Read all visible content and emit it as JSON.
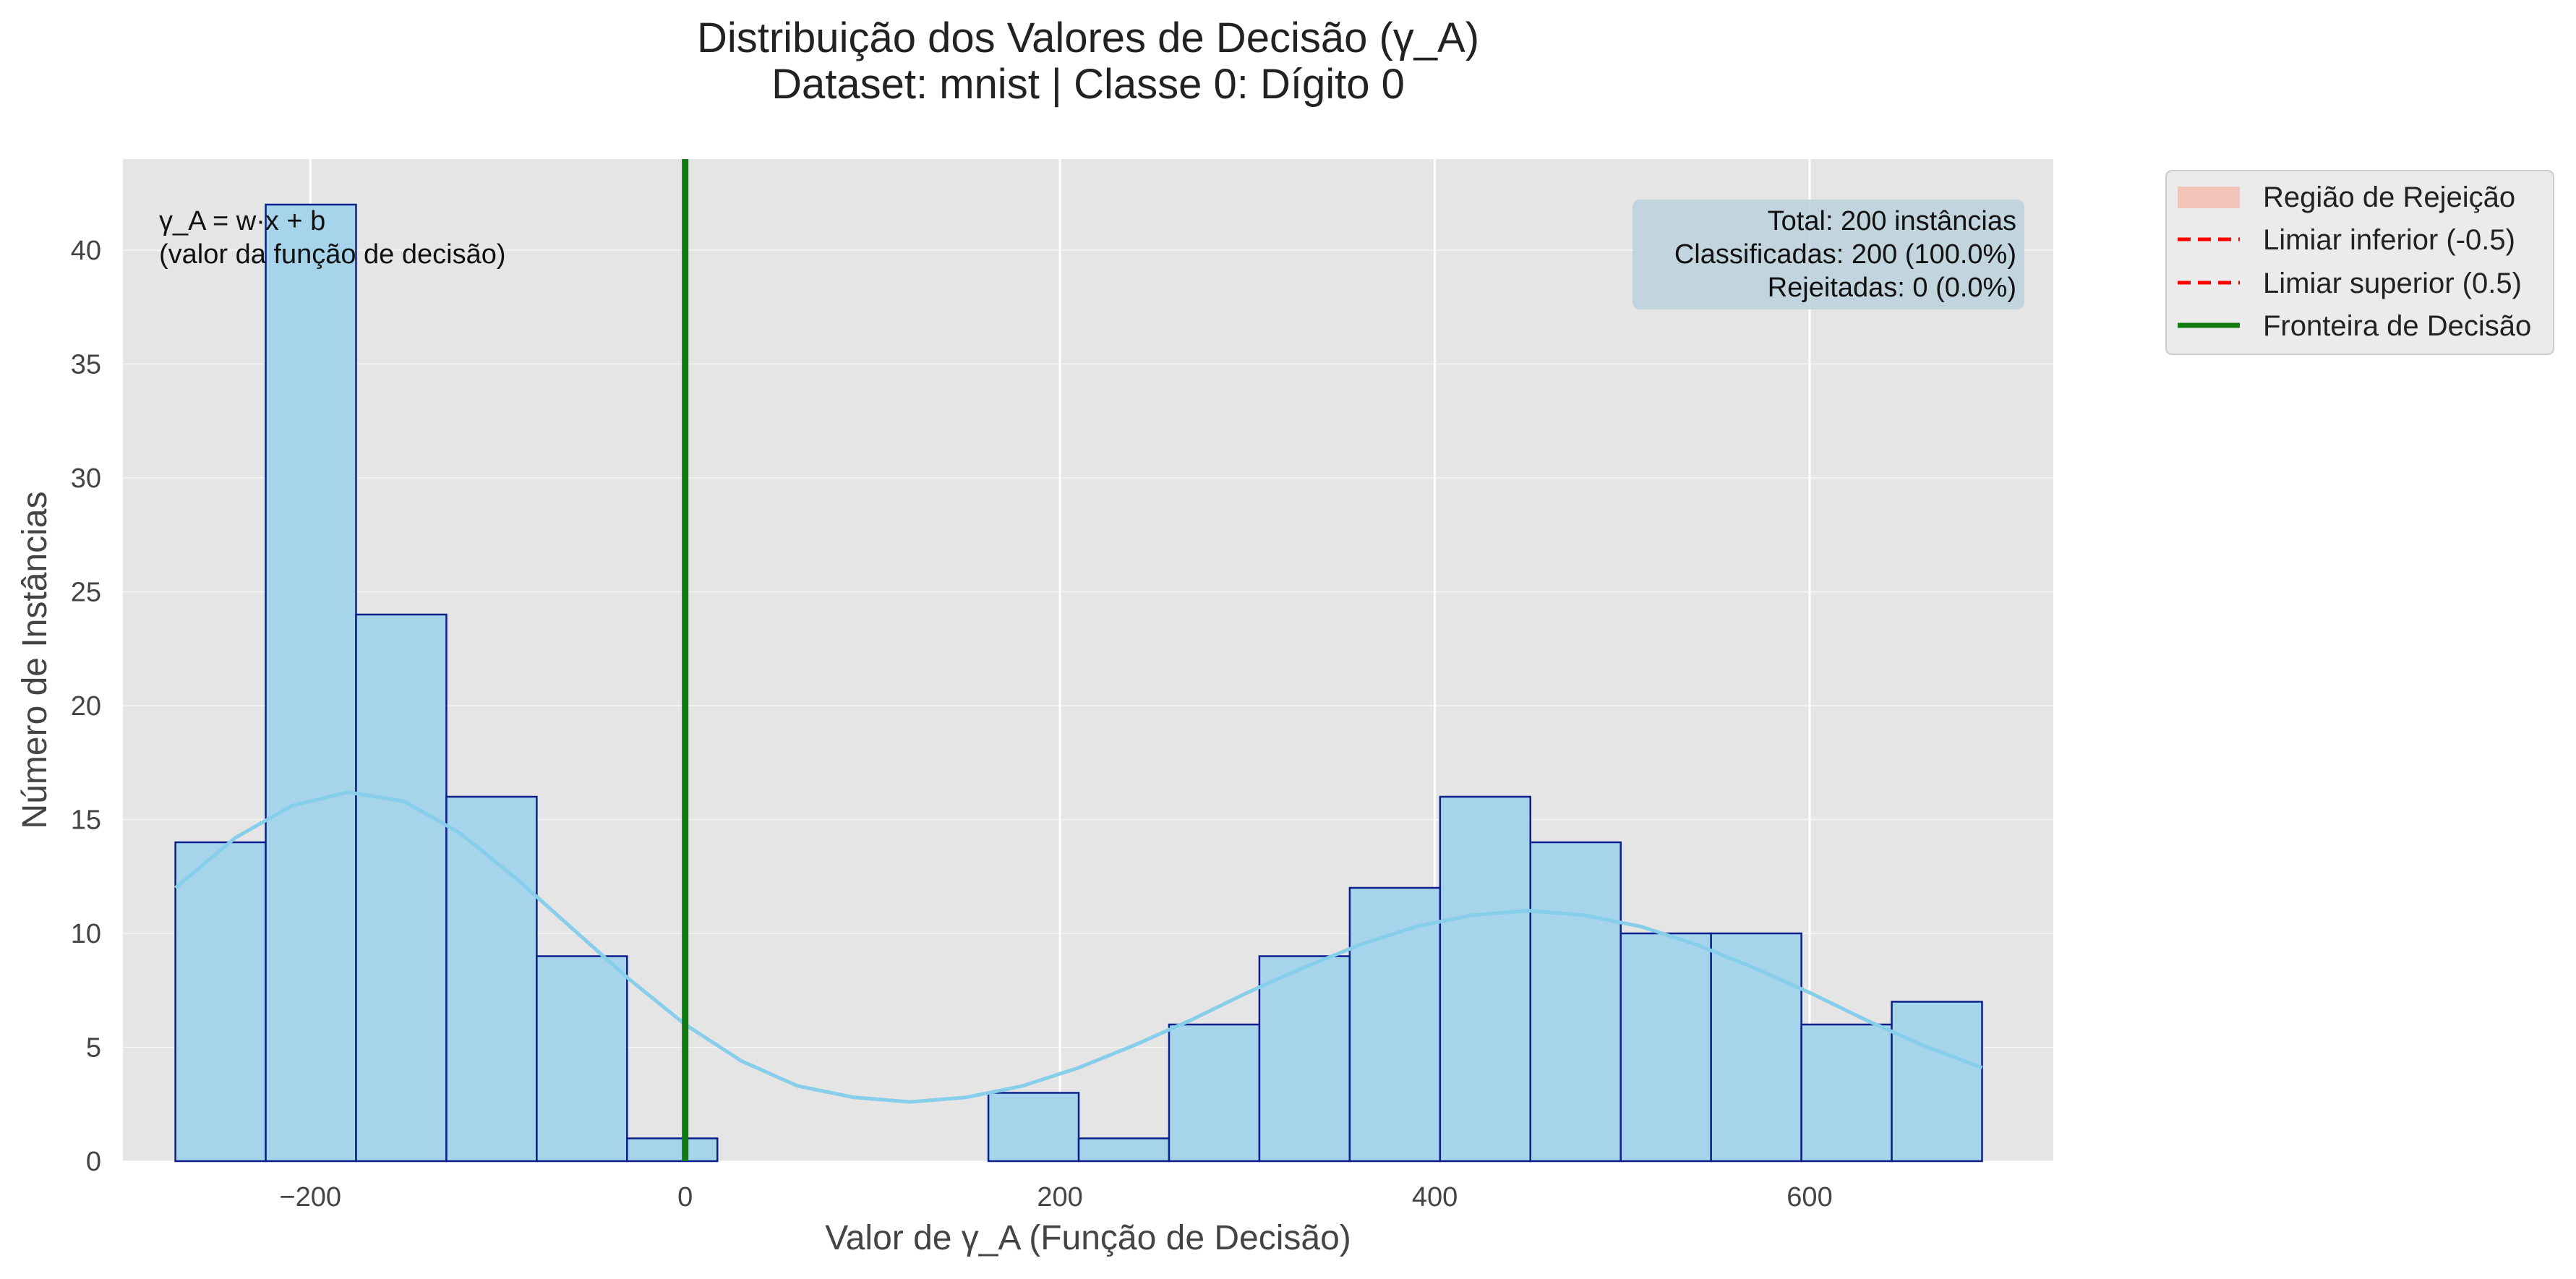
{
  "chart_data": {
    "type": "histogram",
    "title": "Distribuição dos Valores de Decisão (γ_A)",
    "subtitle": "Dataset: mnist | Classe 0: Dígito 0",
    "xlabel": "Valor de γ_A (Função de Decisão)",
    "ylabel": "Número de Instâncias",
    "xlim": [
      -300,
      730
    ],
    "ylim": [
      0,
      44
    ],
    "xticks": [
      -200,
      0,
      200,
      400,
      600
    ],
    "yticks": [
      0,
      5,
      10,
      15,
      20,
      25,
      30,
      35,
      40
    ],
    "grid": true,
    "bin_width": 48.2,
    "bins": [
      {
        "x0": -272,
        "x1": -223.8,
        "count": 14
      },
      {
        "x0": -223.8,
        "x1": -175.6,
        "count": 42
      },
      {
        "x0": -175.6,
        "x1": -127.4,
        "count": 24
      },
      {
        "x0": -127.4,
        "x1": -79.2,
        "count": 16
      },
      {
        "x0": -79.2,
        "x1": -31.0,
        "count": 9
      },
      {
        "x0": -31.0,
        "x1": 17.2,
        "count": 1
      },
      {
        "x0": 17.2,
        "x1": 65.4,
        "count": 0
      },
      {
        "x0": 65.4,
        "x1": 113.6,
        "count": 0
      },
      {
        "x0": 113.6,
        "x1": 161.8,
        "count": 0
      },
      {
        "x0": 161.8,
        "x1": 210.0,
        "count": 3
      },
      {
        "x0": 210.0,
        "x1": 258.2,
        "count": 1
      },
      {
        "x0": 258.2,
        "x1": 306.4,
        "count": 6
      },
      {
        "x0": 306.4,
        "x1": 354.6,
        "count": 9
      },
      {
        "x0": 354.6,
        "x1": 402.8,
        "count": 12
      },
      {
        "x0": 402.8,
        "x1": 451.0,
        "count": 16
      },
      {
        "x0": 451.0,
        "x1": 499.2,
        "count": 14
      },
      {
        "x0": 499.2,
        "x1": 547.4,
        "count": 10
      },
      {
        "x0": 547.4,
        "x1": 595.6,
        "count": 10
      },
      {
        "x0": 595.6,
        "x1": 643.8,
        "count": 6
      },
      {
        "x0": 643.8,
        "x1": 692.0,
        "count": 7
      }
    ],
    "kde": {
      "x": [
        -272,
        -240,
        -210,
        -180,
        -150,
        -120,
        -90,
        -60,
        -30,
        0,
        30,
        60,
        90,
        120,
        150,
        180,
        210,
        240,
        270,
        300,
        330,
        360,
        390,
        420,
        450,
        480,
        510,
        540,
        570,
        600,
        630,
        660,
        692
      ],
      "y": [
        12.0,
        14.2,
        15.6,
        16.2,
        15.8,
        14.4,
        12.4,
        10.2,
        8.0,
        6.0,
        4.4,
        3.3,
        2.8,
        2.6,
        2.8,
        3.3,
        4.1,
        5.1,
        6.2,
        7.4,
        8.5,
        9.5,
        10.3,
        10.8,
        11.0,
        10.8,
        10.3,
        9.5,
        8.5,
        7.4,
        6.2,
        5.1,
        4.1
      ]
    },
    "decision_boundary_x": 0,
    "bar_color": "#a6d4ea",
    "bar_edge_color": "#0d1f8c",
    "kde_color": "#87ceeb",
    "boundary_color": "#117a11",
    "threshold_color": "#ff0000",
    "rejection_color": "#f0c4b8",
    "plot_background": "#e5e5e5",
    "formula_annotation": [
      "γ_A = w·x + b",
      "(valor da função de decisão)"
    ],
    "stats_box": [
      "Total: 200 instâncias",
      "Classificadas: 200 (100.0%)",
      "Rejeitadas: 0 (0.0%)"
    ],
    "legend": {
      "placement": "outside-right",
      "entries": [
        {
          "label": "Região de Rejeição",
          "style": "patch",
          "color": "#f0c4b8"
        },
        {
          "label": "Limiar inferior (-0.5)",
          "style": "dashed",
          "color": "#ff0000"
        },
        {
          "label": "Limiar superior (0.5)",
          "style": "dashed",
          "color": "#ff0000"
        },
        {
          "label": "Fronteira de Decisão",
          "style": "solid",
          "color": "#117a11"
        }
      ]
    }
  }
}
